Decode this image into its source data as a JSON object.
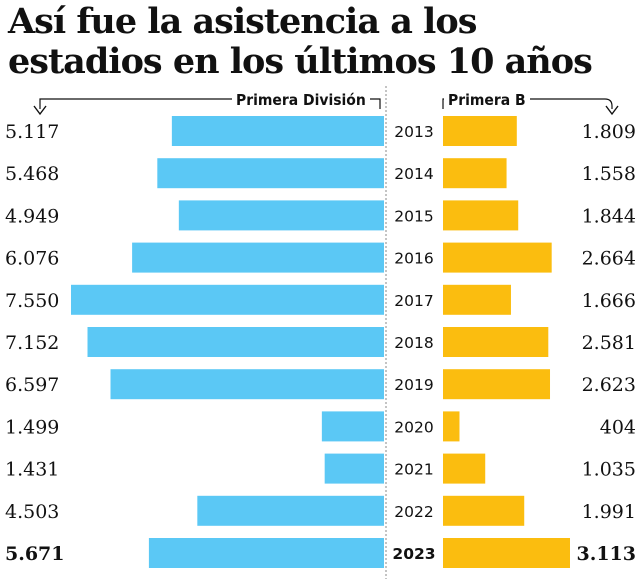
{
  "title_lines": [
    "Así fue la asistencia a los",
    "estadios en los últimos 10 años"
  ],
  "colors": {
    "primera": "#5bc8f5",
    "primera_b": "#fbbd0f",
    "text": "#111111"
  },
  "chart_data": {
    "type": "bar",
    "orientation": "horizontal-butterfly",
    "categories": [
      "2013",
      "2014",
      "2015",
      "2016",
      "2017",
      "2018",
      "2019",
      "2020",
      "2021",
      "2022",
      "2023"
    ],
    "series": [
      {
        "name": "Primera División",
        "values": [
          5117,
          5468,
          4949,
          6076,
          7550,
          7152,
          6597,
          1499,
          1431,
          4503,
          5671
        ],
        "labels": [
          "5.117",
          "5.468",
          "4.949",
          "6.076",
          "7.550",
          "7.152",
          "6.597",
          "1.499",
          "1.431",
          "4.503",
          "5.671"
        ]
      },
      {
        "name": "Primera B",
        "values": [
          1809,
          1558,
          1844,
          2664,
          1666,
          2581,
          2623,
          404,
          1035,
          1991,
          3113
        ],
        "labels": [
          "1.809",
          "1.558",
          "1.844",
          "2.664",
          "1.666",
          "2.581",
          "2.623",
          "404",
          "1.035",
          "1.991",
          "3.113"
        ]
      }
    ],
    "highlight_category": "2023"
  }
}
